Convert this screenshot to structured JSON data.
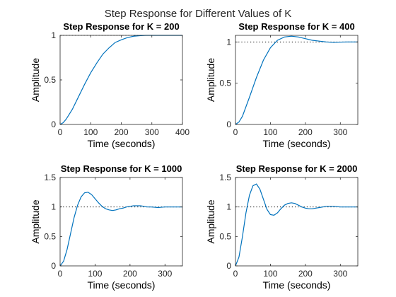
{
  "figure_title": "Step Response for Different Values of K",
  "colors": {
    "response": "#0072bd",
    "axes": "#262626",
    "reference": "#000000"
  },
  "chart_data": [
    {
      "type": "line",
      "title": "Step Response for K = 200",
      "xlabel": "Time (seconds)",
      "ylabel": "Amplitude",
      "xlim": [
        0,
        400
      ],
      "ylim": [
        0,
        1
      ],
      "xticks": [
        0,
        100,
        200,
        300,
        400
      ],
      "yticks": [
        0,
        0.5,
        1
      ],
      "reference_line": 1,
      "grid": false,
      "series": [
        {
          "x": [
            0,
            10,
            20,
            40,
            60,
            80,
            100,
            120,
            140,
            160,
            180,
            200,
            220,
            240,
            260,
            280,
            300,
            330,
            360,
            400
          ],
          "values": [
            0,
            0.02,
            0.06,
            0.17,
            0.31,
            0.45,
            0.58,
            0.69,
            0.79,
            0.86,
            0.92,
            0.95,
            0.975,
            0.99,
            0.996,
            1.0,
            1.0,
            1.0,
            1.0,
            1.0
          ]
        }
      ]
    },
    {
      "type": "line",
      "title": "Step Response for K = 400",
      "xlabel": "Time (seconds)",
      "ylabel": "Amplitude",
      "xlim": [
        0,
        350
      ],
      "ylim": [
        0,
        1.08
      ],
      "xticks": [
        0,
        100,
        200,
        300
      ],
      "yticks": [
        0,
        0.5,
        1
      ],
      "reference_line": 1,
      "grid": false,
      "series": [
        {
          "x": [
            0,
            10,
            20,
            40,
            60,
            80,
            100,
            120,
            140,
            160,
            180,
            200,
            220,
            240,
            260,
            280,
            300,
            320,
            350
          ],
          "values": [
            0,
            0.03,
            0.1,
            0.33,
            0.57,
            0.78,
            0.93,
            1.02,
            1.06,
            1.07,
            1.06,
            1.04,
            1.02,
            1.01,
            1.0,
            0.995,
            0.998,
            1.0,
            1.0
          ]
        }
      ]
    },
    {
      "type": "line",
      "title": "Step Response for K = 1000",
      "xlabel": "Time (seconds)",
      "ylabel": "Amplitude",
      "xlim": [
        0,
        350
      ],
      "ylim": [
        0,
        1.5
      ],
      "xticks": [
        0,
        100,
        200,
        300
      ],
      "yticks": [
        0,
        0.5,
        1,
        1.5
      ],
      "reference_line": 1,
      "grid": false,
      "series": [
        {
          "x": [
            0,
            10,
            20,
            30,
            40,
            50,
            60,
            70,
            80,
            90,
            100,
            110,
            120,
            130,
            140,
            150,
            160,
            170,
            180,
            190,
            200,
            210,
            220,
            230,
            240,
            250,
            260,
            270,
            280,
            290,
            300,
            320,
            350
          ],
          "values": [
            0,
            0.08,
            0.28,
            0.55,
            0.82,
            1.03,
            1.17,
            1.24,
            1.25,
            1.21,
            1.14,
            1.07,
            1.01,
            0.97,
            0.95,
            0.94,
            0.95,
            0.97,
            0.98,
            1.0,
            1.01,
            1.02,
            1.02,
            1.02,
            1.01,
            1.0,
            1.0,
            0.995,
            0.99,
            0.995,
            1.0,
            1.0,
            1.0
          ]
        }
      ]
    },
    {
      "type": "line",
      "title": "Step Response for K = 2000",
      "xlabel": "Time (seconds)",
      "ylabel": "Amplitude",
      "xlim": [
        0,
        350
      ],
      "ylim": [
        0,
        1.5
      ],
      "xticks": [
        0,
        100,
        200,
        300
      ],
      "yticks": [
        0,
        0.5,
        1,
        1.5
      ],
      "reference_line": 1,
      "grid": false,
      "series": [
        {
          "x": [
            0,
            10,
            20,
            30,
            40,
            50,
            60,
            70,
            80,
            90,
            100,
            110,
            120,
            130,
            140,
            150,
            160,
            170,
            180,
            190,
            200,
            210,
            220,
            230,
            240,
            250,
            260,
            280,
            300,
            320,
            350
          ],
          "values": [
            0,
            0.15,
            0.5,
            0.9,
            1.2,
            1.36,
            1.39,
            1.3,
            1.13,
            0.96,
            0.87,
            0.86,
            0.9,
            0.97,
            1.03,
            1.06,
            1.07,
            1.06,
            1.03,
            1.0,
            0.98,
            0.97,
            0.97,
            0.98,
            0.99,
            1.0,
            1.01,
            1.01,
            1.0,
            1.0,
            1.0
          ]
        }
      ]
    }
  ]
}
